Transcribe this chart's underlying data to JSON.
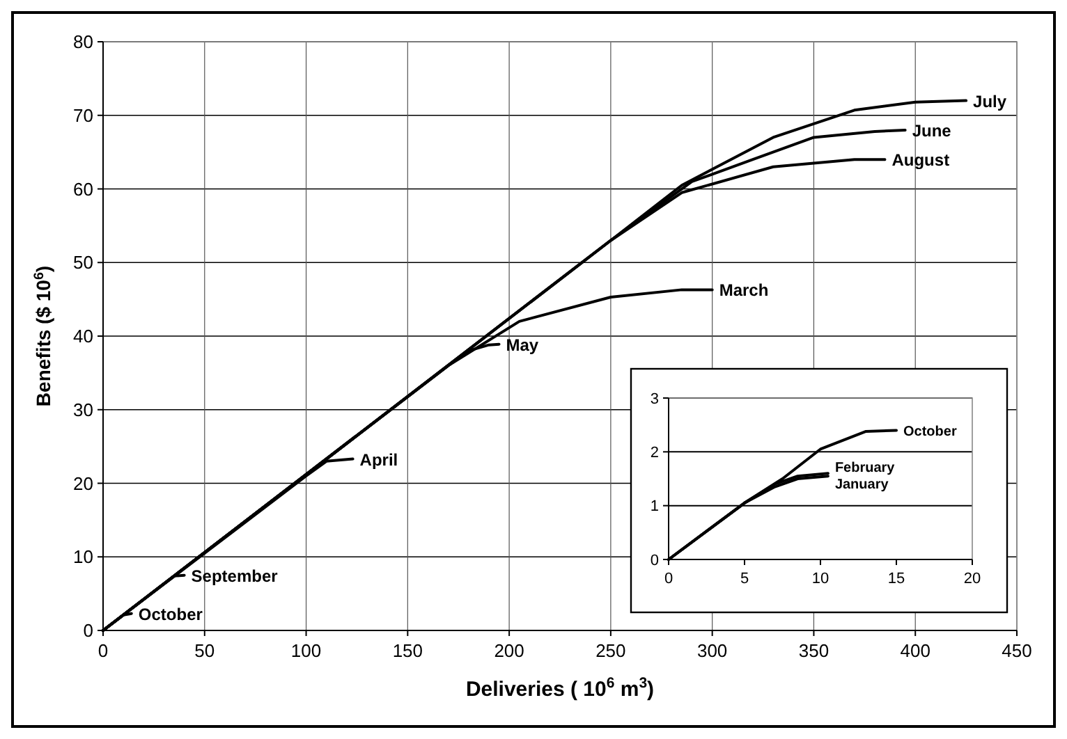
{
  "chart_data": [
    {
      "type": "line",
      "xlabel": "Deliveries ( 10$^{6}$ m$^{3}$)",
      "ylabel": "Benefits ($ 10$^{6}$)",
      "xlim": [
        0,
        450
      ],
      "ylim": [
        0,
        80
      ],
      "xticks": [
        0,
        50,
        100,
        150,
        200,
        250,
        300,
        350,
        400,
        450
      ],
      "yticks": [
        0,
        10,
        20,
        30,
        40,
        50,
        60,
        70,
        80
      ],
      "grid": true,
      "series": [
        {
          "name": "July",
          "color": "#000000",
          "x": [
            0,
            250,
            285,
            330,
            370,
            400,
            425
          ],
          "values": [
            0,
            53,
            60.5,
            67,
            70.7,
            71.8,
            72
          ]
        },
        {
          "name": "June",
          "color": "#000000",
          "x": [
            0,
            250,
            290,
            320,
            350,
            380,
            395
          ],
          "values": [
            0,
            53,
            61,
            64,
            67,
            67.8,
            68
          ]
        },
        {
          "name": "August",
          "color": "#000000",
          "x": [
            0,
            250,
            285,
            330,
            370,
            385
          ],
          "values": [
            0,
            53,
            59.5,
            63,
            64,
            64
          ]
        },
        {
          "name": "March",
          "color": "#000000",
          "x": [
            0,
            170,
            205,
            250,
            285,
            300
          ],
          "values": [
            0,
            36,
            42,
            45.3,
            46.3,
            46.3
          ]
        },
        {
          "name": "May",
          "color": "#000000",
          "x": [
            0,
            170,
            180,
            190,
            195
          ],
          "values": [
            0,
            36,
            38,
            38.8,
            38.9
          ]
        },
        {
          "name": "April",
          "color": "#000000",
          "x": [
            0,
            100,
            110,
            123
          ],
          "values": [
            0,
            21,
            23,
            23.3
          ]
        },
        {
          "name": "September",
          "color": "#000000",
          "x": [
            0,
            35,
            40
          ],
          "values": [
            0,
            7.4,
            7.5
          ]
        },
        {
          "name": "October",
          "color": "#000000",
          "x": [
            0,
            10,
            14
          ],
          "values": [
            0,
            2.1,
            2.3
          ]
        }
      ]
    },
    {
      "type": "line",
      "xlim": [
        0,
        20
      ],
      "ylim": [
        0,
        3
      ],
      "xticks": [
        0,
        5,
        10,
        15,
        20
      ],
      "yticks": [
        0,
        1,
        2,
        3
      ],
      "grid": "y",
      "series": [
        {
          "name": "October",
          "color": "#000000",
          "x": [
            0,
            5,
            7.5,
            10,
            13,
            15
          ],
          "values": [
            0,
            1.05,
            1.5,
            2.05,
            2.38,
            2.4
          ]
        },
        {
          "name": "February",
          "color": "#000000",
          "x": [
            0,
            5,
            7,
            8.5,
            10.5
          ],
          "values": [
            0,
            1.05,
            1.4,
            1.55,
            1.6
          ]
        },
        {
          "name": "January",
          "color": "#000000",
          "x": [
            0,
            5,
            7,
            8.5,
            10.5
          ],
          "values": [
            0,
            1.05,
            1.35,
            1.5,
            1.55
          ]
        }
      ]
    }
  ]
}
